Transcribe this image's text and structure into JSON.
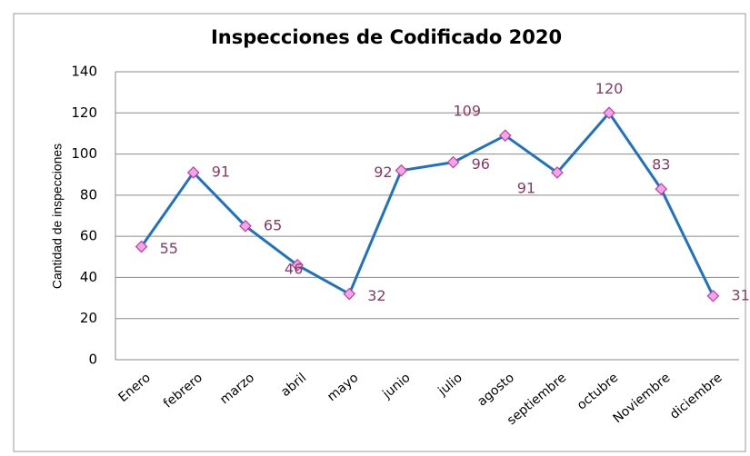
{
  "chart_data": {
    "type": "line",
    "title": "Inspecciones de Codificado 2020",
    "y_label": "Cantidad de inspecciones",
    "categories": [
      "Enero",
      "febrero",
      "marzo",
      "abril",
      "mayo",
      "junio",
      "julio",
      "agosto",
      "septiembre",
      "octubre",
      "Noviembre",
      "diciembre"
    ],
    "series": [
      {
        "name": "Inspecciones",
        "color": "#1f72c0",
        "values": [
          55,
          91,
          65,
          46,
          32,
          92,
          96,
          109,
          91,
          120,
          83,
          31
        ]
      }
    ],
    "ylim": [
      0,
      140
    ],
    "yticks": [
      0,
      20,
      40,
      60,
      80,
      100,
      120,
      140
    ],
    "grid": true
  }
}
